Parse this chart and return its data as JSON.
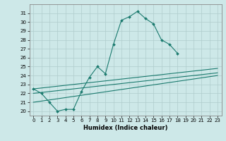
{
  "title": "",
  "xlabel": "Humidex (Indice chaleur)",
  "xlim": [
    -0.5,
    23.5
  ],
  "ylim": [
    19.5,
    32
  ],
  "xticks": [
    0,
    1,
    2,
    3,
    4,
    5,
    6,
    7,
    8,
    9,
    10,
    11,
    12,
    13,
    14,
    15,
    16,
    17,
    18,
    19,
    20,
    21,
    22,
    23
  ],
  "yticks": [
    20,
    21,
    22,
    23,
    24,
    25,
    26,
    27,
    28,
    29,
    30,
    31
  ],
  "bg_color": "#cde8e8",
  "grid_color": "#b0cccc",
  "line_color": "#1a7a6e",
  "main_series": {
    "x": [
      0,
      1,
      2,
      3,
      4,
      5,
      6,
      7,
      8,
      9,
      10,
      11,
      12,
      13,
      14,
      15,
      16,
      17,
      18,
      19
    ],
    "y": [
      22.5,
      22.0,
      21.0,
      20.0,
      20.2,
      20.2,
      22.2,
      23.8,
      25.0,
      24.2,
      27.5,
      30.2,
      30.6,
      31.2,
      30.4,
      29.8,
      28.0,
      27.5,
      26.5,
      null
    ]
  },
  "trend_lines": [
    {
      "x": [
        0,
        23
      ],
      "y": [
        22.5,
        24.8
      ]
    },
    {
      "x": [
        0,
        23
      ],
      "y": [
        22.0,
        24.3
      ]
    },
    {
      "x": [
        0,
        23
      ],
      "y": [
        21.0,
        24.0
      ]
    }
  ]
}
